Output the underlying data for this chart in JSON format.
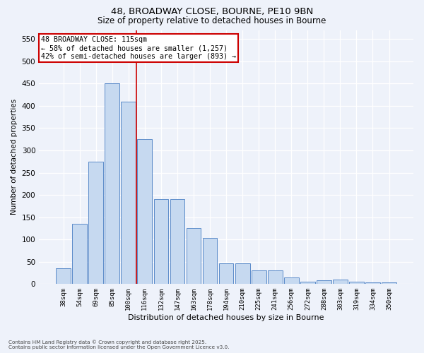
{
  "title_line1": "48, BROADWAY CLOSE, BOURNE, PE10 9BN",
  "title_line2": "Size of property relative to detached houses in Bourne",
  "xlabel": "Distribution of detached houses by size in Bourne",
  "ylabel": "Number of detached properties",
  "categories": [
    "38sqm",
    "54sqm",
    "69sqm",
    "85sqm",
    "100sqm",
    "116sqm",
    "132sqm",
    "147sqm",
    "163sqm",
    "178sqm",
    "194sqm",
    "210sqm",
    "225sqm",
    "241sqm",
    "256sqm",
    "272sqm",
    "288sqm",
    "303sqm",
    "319sqm",
    "334sqm",
    "350sqm"
  ],
  "values": [
    35,
    135,
    275,
    450,
    410,
    325,
    190,
    190,
    125,
    103,
    46,
    46,
    30,
    30,
    15,
    5,
    8,
    10,
    5,
    4,
    4
  ],
  "bar_color": "#c6d9f0",
  "bar_edge_color": "#5b8bc9",
  "vline_color": "#cc0000",
  "annotation_text": "48 BROADWAY CLOSE: 115sqm\n← 58% of detached houses are smaller (1,257)\n42% of semi-detached houses are larger (893) →",
  "annotation_box_color": "#ffffff",
  "annotation_box_edge": "#cc0000",
  "footnote": "Contains HM Land Registry data © Crown copyright and database right 2025.\nContains public sector information licensed under the Open Government Licence v3.0.",
  "ylim": [
    0,
    570
  ],
  "yticks": [
    0,
    50,
    100,
    150,
    200,
    250,
    300,
    350,
    400,
    450,
    500,
    550
  ],
  "background_color": "#eef2fa",
  "grid_color": "#ffffff",
  "figsize": [
    6.0,
    5.0
  ],
  "dpi": 100
}
